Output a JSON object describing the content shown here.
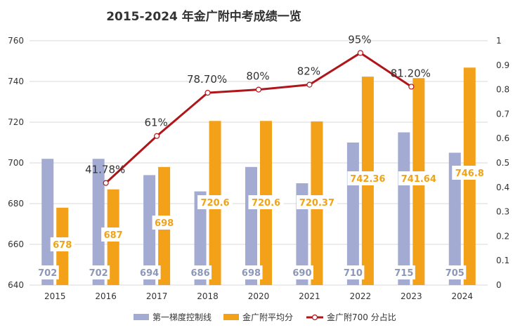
{
  "chart_data": {
    "type": "bar",
    "title": "2015-2024 年金广附中考成绩一览",
    "categories": [
      "2015",
      "2016",
      "2017",
      "2018",
      "2020",
      "2021",
      "2022",
      "2023",
      "2024"
    ],
    "series": [
      {
        "name": "第一梯度控制线",
        "kind": "bar",
        "axis": "left",
        "color": "#a3abd3",
        "values": [
          702,
          702,
          694,
          686,
          698,
          690,
          710,
          715,
          705
        ],
        "labels": [
          "702",
          "702",
          "694",
          "686",
          "698",
          "690",
          "710",
          "715",
          "705"
        ]
      },
      {
        "name": "金广附平均分",
        "kind": "bar",
        "axis": "left",
        "color": "#f4a11a",
        "values": [
          678,
          687,
          698,
          720.6,
          720.6,
          720.37,
          742.36,
          741.64,
          746.8
        ],
        "labels": [
          "678",
          "687",
          "698",
          "720.6",
          "720.6",
          "720.37",
          "742.36",
          "741.64",
          "746.8"
        ]
      },
      {
        "name": "金广附700 分占比",
        "kind": "line",
        "axis": "right",
        "color": "#b0151a",
        "values": [
          null,
          0.4178,
          0.61,
          0.787,
          0.8,
          0.82,
          0.95,
          0.812,
          null
        ],
        "labels": [
          "",
          "41.78%",
          "61%",
          "78.70%",
          "80%",
          "82%",
          "95%",
          "81.20%",
          ""
        ]
      }
    ],
    "y_left": {
      "min": 640,
      "max": 760,
      "ticks": [
        "640",
        "660",
        "680",
        "700",
        "720",
        "740",
        "760"
      ]
    },
    "y_right": {
      "min": 0,
      "max": 1,
      "ticks": [
        "0",
        "0.1",
        "0.2",
        "0.3",
        "0.4",
        "0.5",
        "0.6",
        "0.7",
        "0.8",
        "0.9",
        "1"
      ]
    },
    "grid": true,
    "legend_position": "bottom"
  }
}
